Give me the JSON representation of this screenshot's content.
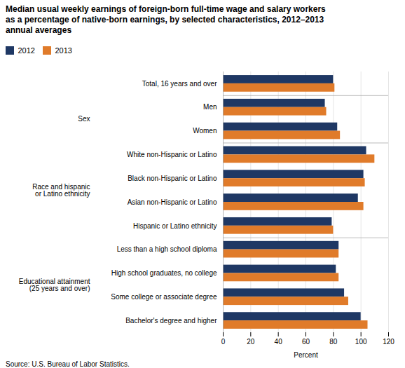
{
  "chart_data": {
    "type": "bar",
    "orientation": "horizontal",
    "title": "Median usual weekly earnings of foreign-born full-time wage and salary workers\nas a percentage of native-born earnings, by selected characteristics, 2012–2013\nannual averages",
    "categories": [
      "Total, 16 years and over",
      "Men",
      "Women",
      "White non-Hispanic or Latino",
      "Black non-Hispanic or Latino",
      "Asian non-Hispanic or Latino",
      "Hispanic or Latino ethnicity",
      "Less than a high school diploma",
      "High school graduates, no college",
      "Some college or associate degree",
      "Bachelor's degree and higher"
    ],
    "series": [
      {
        "name": "2012",
        "color": "#1f3864",
        "values": [
          80,
          74,
          83,
          104,
          102,
          98,
          79,
          84,
          82,
          88,
          100
        ]
      },
      {
        "name": "2013",
        "color": "#e07b2a",
        "values": [
          81,
          75,
          85,
          110,
          103,
          102,
          80,
          84,
          84,
          91,
          105
        ]
      }
    ],
    "xlabel": "Percent",
    "xlim": [
      0,
      120
    ],
    "xticks": [
      0,
      20,
      40,
      60,
      80,
      100,
      120
    ],
    "grid": true,
    "annotations": [
      {
        "text": "Sex",
        "categories": [
          "Men",
          "Women"
        ]
      },
      {
        "text": "Race and hispanic\nor Latino ethnicity",
        "categories": [
          "White non-Hispanic or Latino",
          "Hispanic or Latino ethnicity"
        ]
      },
      {
        "text": "Educational attainment\n(25 years and over)",
        "categories": [
          "Less than a high school diploma",
          "Bachelor's degree and higher"
        ]
      }
    ],
    "source": "Source: U.S. Bureau of Labor Statistics."
  }
}
